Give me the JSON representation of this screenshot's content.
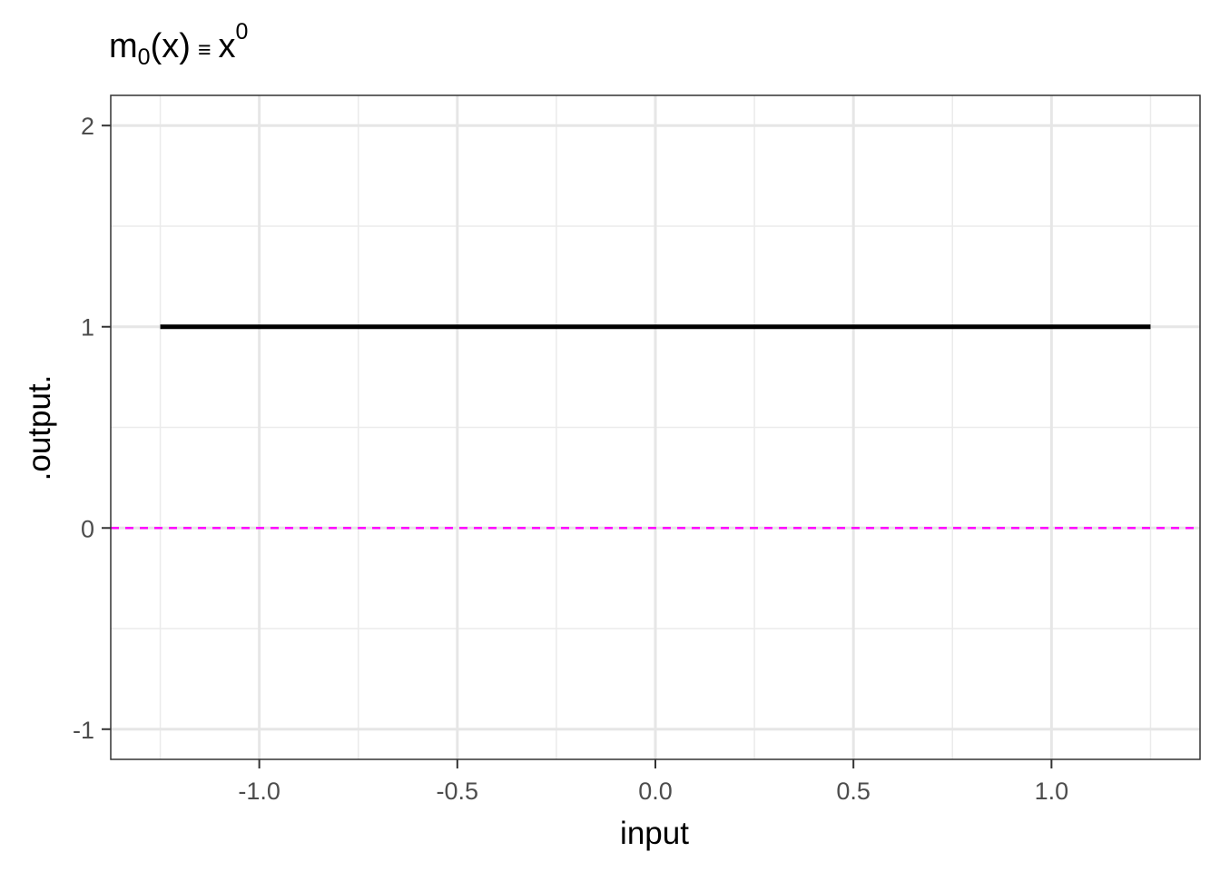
{
  "chart_data": {
    "type": "line",
    "title": {
      "base": "m",
      "subscript": "0",
      "middle": "(x)",
      "equiv": "≡",
      "var": "x",
      "superscript": "0"
    },
    "xlabel": "input",
    "ylabel": ".output.",
    "xlim": [
      -1.375,
      1.375
    ],
    "ylim": [
      -1.15,
      2.15
    ],
    "x_ticks": [
      -1.0,
      -0.5,
      0.0,
      0.5,
      1.0
    ],
    "x_tick_labels": [
      "-1.0",
      "-0.5",
      "0.0",
      "0.5",
      "1.0"
    ],
    "x_minor_ticks": [
      -1.25,
      -0.75,
      -0.25,
      0.25,
      0.75,
      1.25
    ],
    "y_ticks": [
      -1,
      0,
      1,
      2
    ],
    "y_tick_labels": [
      "-1",
      "0",
      "1",
      "2"
    ],
    "y_minor_ticks": [
      -0.5,
      0.5,
      1.5
    ],
    "grid": true,
    "series": [
      {
        "x": [
          -1.25,
          1.25
        ],
        "y": [
          1,
          1
        ],
        "color": "#000000",
        "style": "solid"
      }
    ],
    "reference_lines": [
      {
        "axis": "y",
        "value": 0,
        "color": "#ff00ff",
        "style": "dashed"
      }
    ]
  }
}
